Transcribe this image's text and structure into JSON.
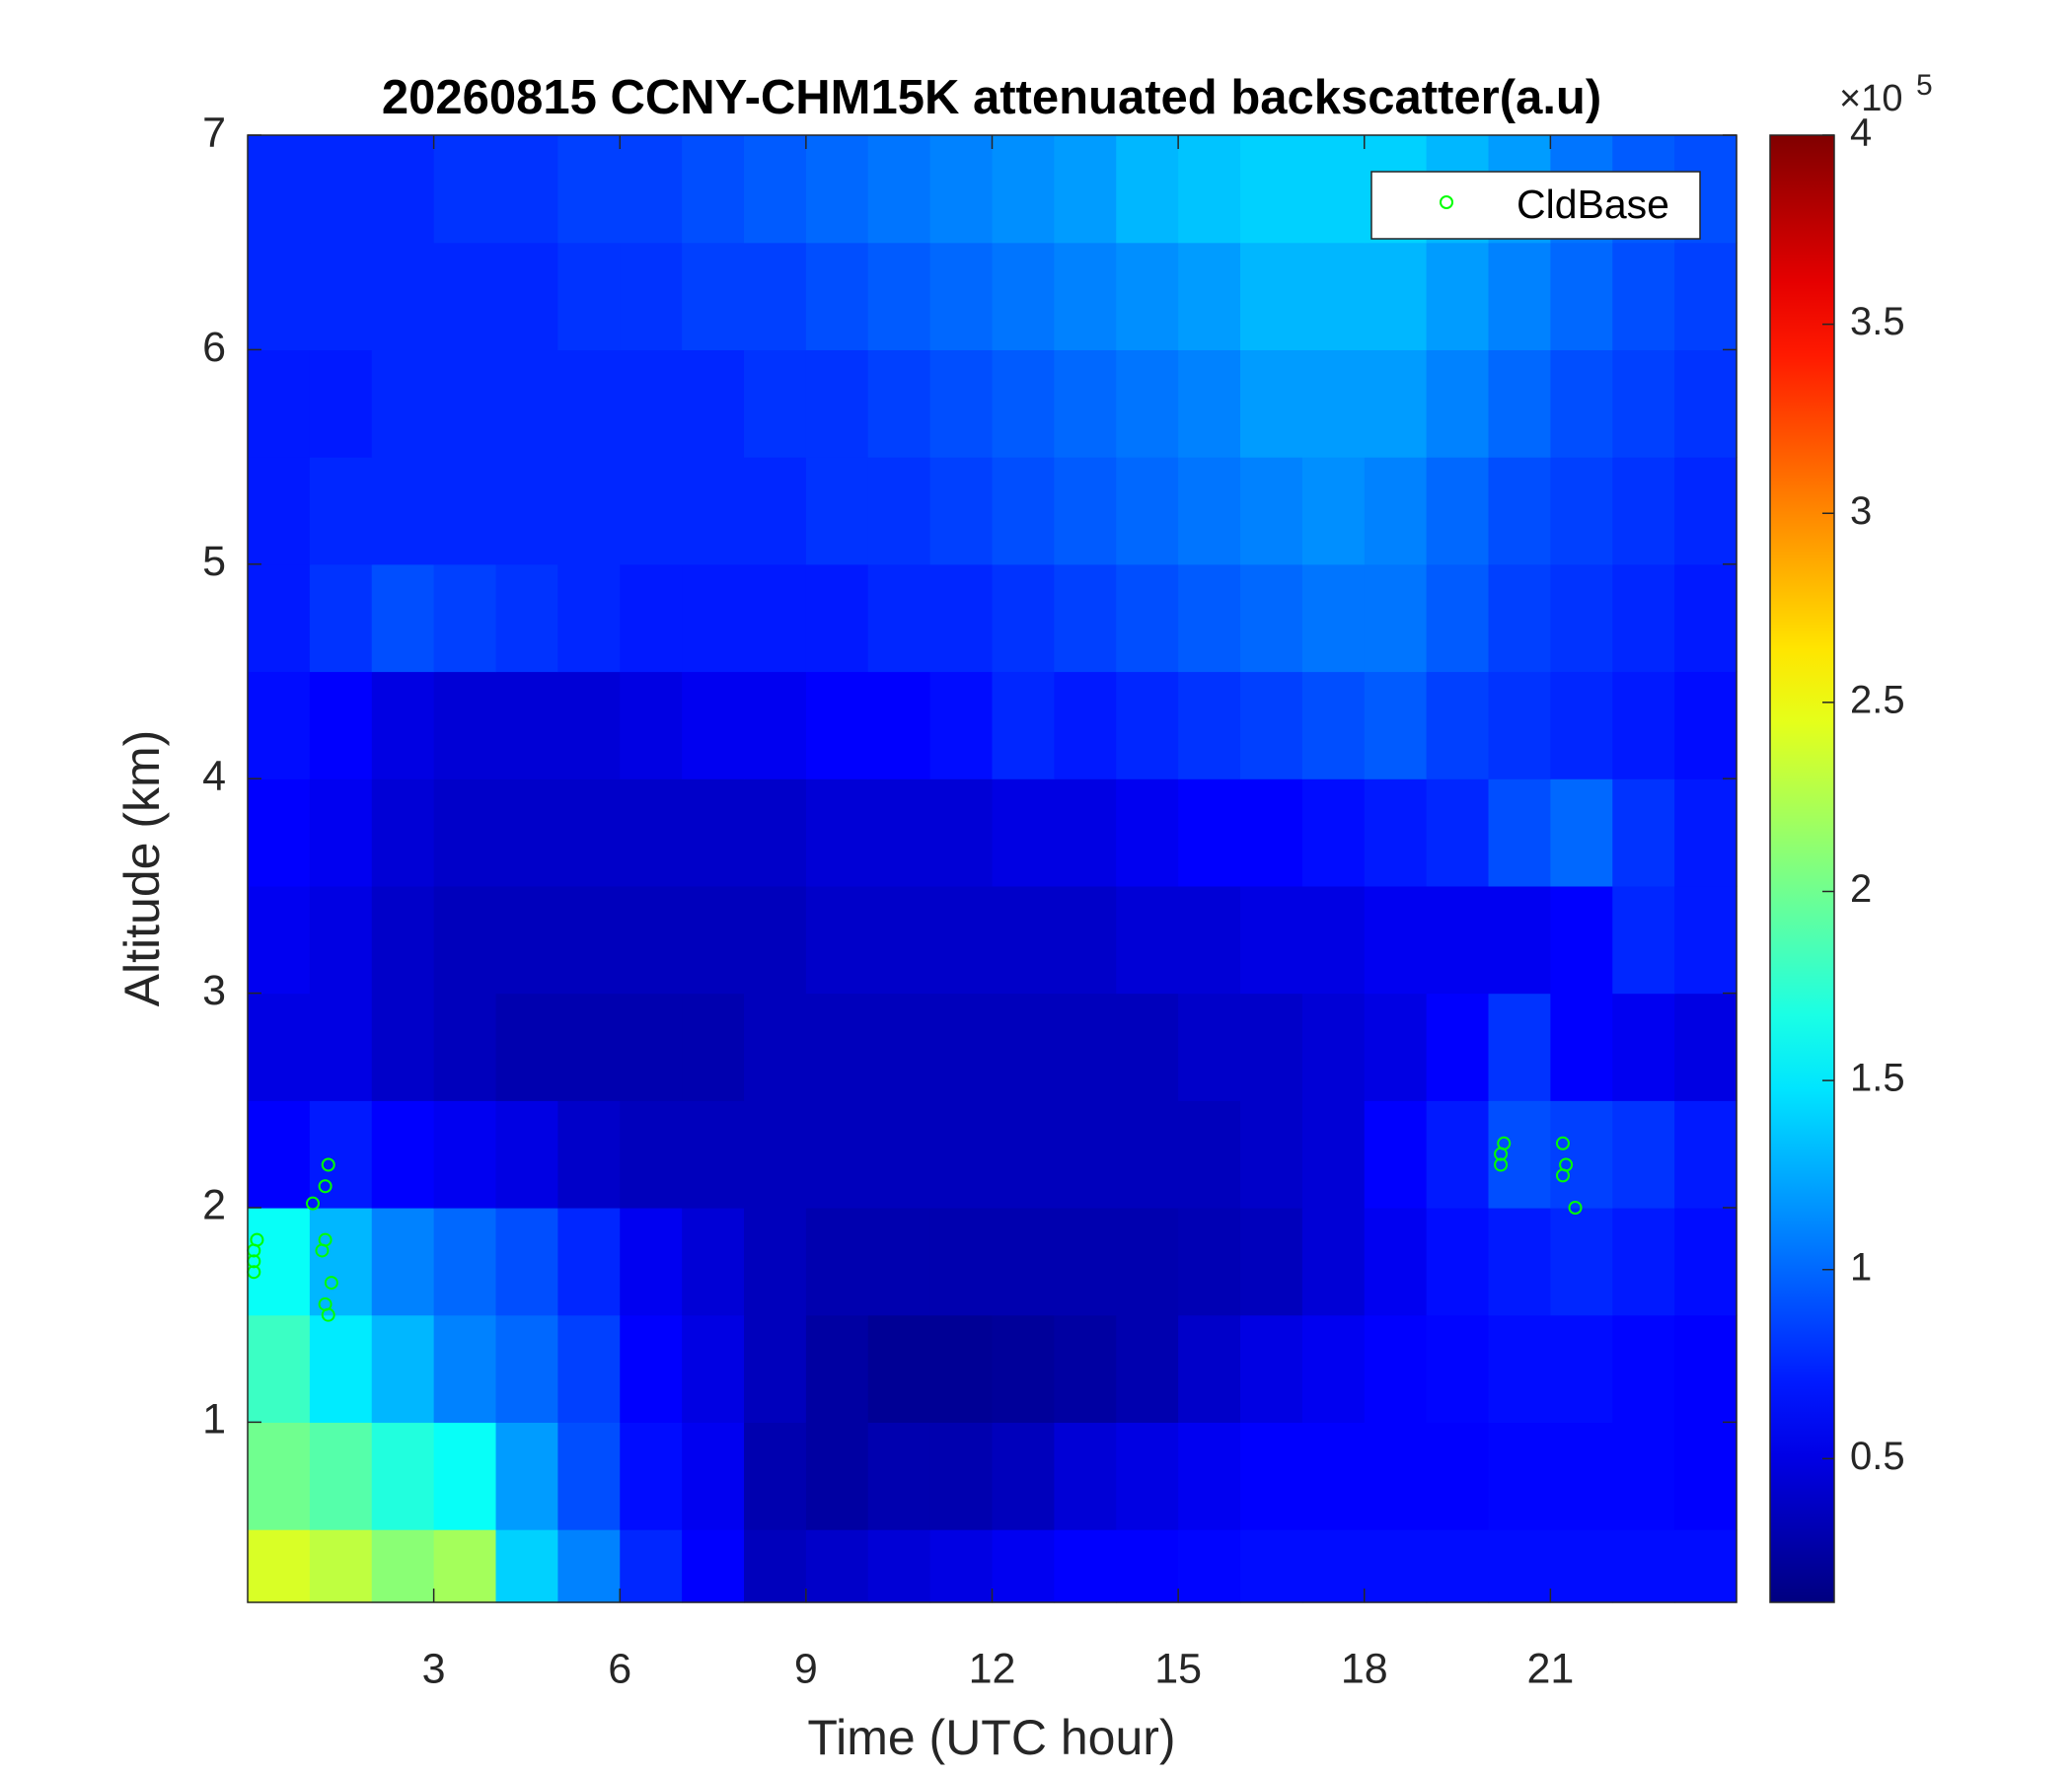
{
  "chart_data": {
    "type": "heatmap",
    "title": "20260815 CCNY-CHM15K attenuated backscatter(a.u)",
    "x_label": "Time (UTC hour)",
    "y_label": "Altitude (km)",
    "xlim": [
      0,
      24
    ],
    "xticks": [
      3,
      6,
      9,
      12,
      15,
      18,
      21
    ],
    "ylim": [
      0.16,
      7
    ],
    "yticks": [
      1,
      2,
      3,
      4,
      5,
      6,
      7
    ],
    "x_edges": [
      0,
      1,
      2,
      3,
      4,
      5,
      6,
      7,
      8,
      9,
      10,
      11,
      12,
      13,
      14,
      15,
      16,
      17,
      18,
      19,
      20,
      21,
      22,
      23,
      24
    ],
    "y_edges": [
      0.16,
      0.5,
      1,
      1.5,
      2,
      2.5,
      3,
      3.5,
      4,
      4.5,
      5,
      5.5,
      6,
      6.5,
      7
    ],
    "z": [
      [
        2.4,
        2.3,
        2.1,
        2.2,
        1.4,
        1.1,
        0.75,
        0.6,
        0.35,
        0.4,
        0.45,
        0.5,
        0.55,
        0.6,
        0.6,
        0.62,
        0.65,
        0.65,
        0.65,
        0.65,
        0.65,
        0.65,
        0.65,
        0.65
      ],
      [
        2.0,
        1.9,
        1.7,
        1.6,
        1.2,
        0.9,
        0.65,
        0.55,
        0.3,
        0.25,
        0.3,
        0.3,
        0.35,
        0.45,
        0.5,
        0.55,
        0.6,
        0.6,
        0.6,
        0.6,
        0.62,
        0.62,
        0.62,
        0.6
      ],
      [
        1.8,
        1.5,
        1.3,
        1.1,
        1.0,
        0.85,
        0.6,
        0.5,
        0.35,
        0.25,
        0.2,
        0.2,
        0.22,
        0.25,
        0.3,
        0.4,
        0.5,
        0.55,
        0.6,
        0.62,
        0.65,
        0.65,
        0.62,
        0.6
      ],
      [
        1.6,
        1.3,
        1.1,
        1.0,
        0.9,
        0.75,
        0.55,
        0.45,
        0.35,
        0.3,
        0.3,
        0.3,
        0.3,
        0.3,
        0.3,
        0.32,
        0.35,
        0.45,
        0.55,
        0.65,
        0.7,
        0.75,
        0.7,
        0.65
      ],
      [
        0.6,
        0.7,
        0.6,
        0.55,
        0.5,
        0.4,
        0.35,
        0.35,
        0.35,
        0.35,
        0.35,
        0.35,
        0.35,
        0.35,
        0.35,
        0.35,
        0.4,
        0.45,
        0.6,
        0.7,
        0.9,
        0.85,
        0.8,
        0.7
      ],
      [
        0.5,
        0.5,
        0.4,
        0.35,
        0.3,
        0.3,
        0.3,
        0.3,
        0.35,
        0.35,
        0.35,
        0.35,
        0.35,
        0.35,
        0.35,
        0.4,
        0.4,
        0.45,
        0.5,
        0.6,
        0.8,
        0.6,
        0.55,
        0.5
      ],
      [
        0.55,
        0.5,
        0.4,
        0.35,
        0.35,
        0.35,
        0.35,
        0.35,
        0.35,
        0.4,
        0.4,
        0.4,
        0.4,
        0.4,
        0.45,
        0.45,
        0.5,
        0.5,
        0.55,
        0.55,
        0.55,
        0.6,
        0.75,
        0.7
      ],
      [
        0.6,
        0.55,
        0.45,
        0.4,
        0.4,
        0.4,
        0.4,
        0.4,
        0.4,
        0.45,
        0.45,
        0.45,
        0.5,
        0.5,
        0.55,
        0.6,
        0.6,
        0.65,
        0.7,
        0.75,
        0.9,
        1.0,
        0.8,
        0.7
      ],
      [
        0.65,
        0.6,
        0.5,
        0.45,
        0.45,
        0.45,
        0.5,
        0.55,
        0.55,
        0.6,
        0.6,
        0.65,
        0.75,
        0.7,
        0.75,
        0.8,
        0.85,
        0.9,
        0.95,
        0.85,
        0.8,
        0.75,
        0.7,
        0.65
      ],
      [
        0.7,
        0.8,
        0.9,
        0.85,
        0.8,
        0.75,
        0.7,
        0.7,
        0.7,
        0.7,
        0.75,
        0.75,
        0.8,
        0.85,
        0.9,
        0.95,
        1.0,
        1.05,
        1.05,
        0.95,
        0.85,
        0.8,
        0.75,
        0.7
      ],
      [
        0.7,
        0.75,
        0.75,
        0.75,
        0.75,
        0.75,
        0.75,
        0.75,
        0.75,
        0.8,
        0.8,
        0.85,
        0.9,
        0.95,
        1.0,
        1.05,
        1.1,
        1.15,
        1.1,
        1.0,
        0.9,
        0.85,
        0.8,
        0.75
      ],
      [
        0.7,
        0.7,
        0.75,
        0.75,
        0.75,
        0.75,
        0.75,
        0.75,
        0.8,
        0.8,
        0.85,
        0.9,
        0.95,
        1.0,
        1.05,
        1.1,
        1.2,
        1.2,
        1.2,
        1.1,
        1.0,
        0.9,
        0.85,
        0.8
      ],
      [
        0.75,
        0.75,
        0.75,
        0.75,
        0.75,
        0.8,
        0.8,
        0.85,
        0.85,
        0.9,
        0.95,
        1.0,
        1.05,
        1.1,
        1.15,
        1.2,
        1.3,
        1.3,
        1.3,
        1.2,
        1.1,
        1.0,
        0.9,
        0.85
      ],
      [
        0.75,
        0.75,
        0.75,
        0.8,
        0.8,
        0.85,
        0.85,
        0.9,
        0.95,
        1.0,
        1.05,
        1.1,
        1.15,
        1.2,
        1.3,
        1.35,
        1.4,
        1.4,
        1.4,
        1.3,
        1.2,
        1.05,
        0.95,
        0.9
      ]
    ],
    "colormap": "jet",
    "clim": [
      0.12,
      4
    ],
    "colorbar_ticks": [
      0.5,
      1,
      1.5,
      2,
      2.5,
      3,
      3.5,
      4
    ],
    "colorbar_multiplier": {
      "base": "×10",
      "exponent": "5"
    },
    "legend_position": "upper right",
    "series": [
      {
        "name": "CldBase",
        "type": "scatter",
        "color": "#00ff00",
        "x": [
          0.1,
          0.1,
          0.15,
          0.1,
          1.05,
          1.2,
          1.25,
          1.25,
          1.3,
          1.25,
          1.3,
          1.35,
          20.2,
          20.25,
          20.2,
          21.2,
          21.2,
          21.25,
          21.4
        ],
        "values": [
          1.7,
          1.8,
          1.85,
          1.75,
          2.02,
          1.8,
          1.85,
          1.55,
          1.5,
          2.1,
          2.2,
          1.65,
          2.2,
          2.3,
          2.25,
          2.3,
          2.15,
          2.2,
          2.0
        ]
      }
    ]
  }
}
